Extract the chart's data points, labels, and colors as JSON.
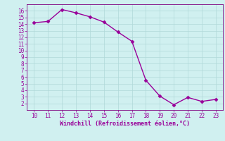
{
  "x": [
    10,
    11,
    12,
    13,
    14,
    15,
    16,
    17,
    18,
    19,
    20,
    21,
    22,
    23
  ],
  "y": [
    14.2,
    14.4,
    16.2,
    15.7,
    15.1,
    14.3,
    12.8,
    11.4,
    5.5,
    3.1,
    1.8,
    2.9,
    2.3,
    2.6
  ],
  "line_color": "#990099",
  "marker": "D",
  "marker_size": 2.5,
  "bg_color": "#d0f0f0",
  "grid_color": "#b0d8d8",
  "xlabel": "Windchill (Refroidissement éolien,°C)",
  "xlabel_color": "#990099",
  "tick_color": "#990099",
  "xlim": [
    9.5,
    23.5
  ],
  "ylim": [
    1,
    17
  ],
  "xticks": [
    10,
    11,
    12,
    13,
    14,
    15,
    16,
    17,
    18,
    19,
    20,
    21,
    22,
    23
  ],
  "yticks": [
    2,
    3,
    4,
    5,
    6,
    7,
    8,
    9,
    10,
    11,
    12,
    13,
    14,
    15,
    16
  ],
  "spine_color": "#7f007f",
  "linewidth": 1.0,
  "tick_fontsize": 5.5,
  "xlabel_fontsize": 6.0
}
